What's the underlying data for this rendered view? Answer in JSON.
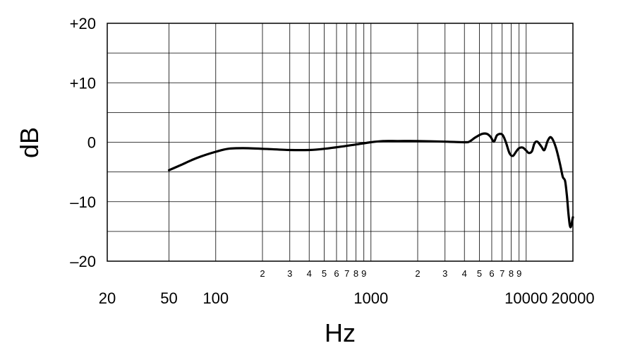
{
  "chart_data": {
    "type": "line",
    "title": "",
    "xlabel": "Hz",
    "ylabel": "dB",
    "xscale": "log",
    "xlim": [
      20,
      20000
    ],
    "ylim": [
      -20,
      20
    ],
    "grid": true,
    "y_ticks": [
      {
        "value": 20,
        "label": "+20"
      },
      {
        "value": 10,
        "label": "+10"
      },
      {
        "value": 0,
        "label": "0"
      },
      {
        "value": -10,
        "label": "–10"
      },
      {
        "value": -20,
        "label": "–20"
      }
    ],
    "x_major_ticks": [
      {
        "value": 20,
        "label": "20"
      },
      {
        "value": 50,
        "label": "50"
      },
      {
        "value": 100,
        "label": "100"
      },
      {
        "value": 1000,
        "label": "1000"
      },
      {
        "value": 10000,
        "label": "10000"
      },
      {
        "value": 20000,
        "label": "20000"
      }
    ],
    "x_minor_ticks": [
      {
        "value": 200,
        "label": "2"
      },
      {
        "value": 300,
        "label": "3"
      },
      {
        "value": 400,
        "label": "4"
      },
      {
        "value": 500,
        "label": "5"
      },
      {
        "value": 600,
        "label": "6"
      },
      {
        "value": 700,
        "label": "7"
      },
      {
        "value": 800,
        "label": "8"
      },
      {
        "value": 900,
        "label": "9"
      },
      {
        "value": 2000,
        "label": "2"
      },
      {
        "value": 3000,
        "label": "3"
      },
      {
        "value": 4000,
        "label": "4"
      },
      {
        "value": 5000,
        "label": "5"
      },
      {
        "value": 6000,
        "label": "6"
      },
      {
        "value": 7000,
        "label": "7"
      },
      {
        "value": 8000,
        "label": "8"
      },
      {
        "value": 9000,
        "label": "9"
      }
    ],
    "x_gridlines": [
      50,
      100,
      200,
      300,
      400,
      500,
      600,
      700,
      800,
      900,
      1000,
      2000,
      3000,
      4000,
      5000,
      6000,
      7000,
      8000,
      9000,
      10000
    ],
    "y_gridlines": [
      -15,
      -10,
      -5,
      0,
      5,
      10,
      15
    ],
    "series": [
      {
        "x": [
          50,
          60,
          70,
          80,
          100,
          120,
          150,
          200,
          300,
          400,
          500,
          700,
          1000,
          1200,
          1500,
          2000,
          3000,
          4000,
          4300,
          4700,
          5200,
          5600,
          5900,
          6200,
          6500,
          7000,
          7400,
          7800,
          8200,
          8600,
          9000,
          9500,
          10000,
          10400,
          10900,
          11300,
          11800,
          12500,
          13100,
          13800,
          14500,
          15500,
          16500,
          17200,
          17800,
          18300,
          18800,
          19300,
          20000
        ],
        "y": [
          -4.7,
          -3.8,
          -3.0,
          -2.4,
          -1.6,
          -1.1,
          -1.0,
          -1.1,
          -1.3,
          -1.3,
          -1.1,
          -0.6,
          0.0,
          0.2,
          0.2,
          0.2,
          0.1,
          0.0,
          0.1,
          0.8,
          1.4,
          1.4,
          0.9,
          0.1,
          1.2,
          1.3,
          0.0,
          -1.8,
          -2.3,
          -1.6,
          -1.0,
          -0.9,
          -1.4,
          -1.8,
          -1.5,
          -0.2,
          0.1,
          -0.7,
          -1.3,
          0.3,
          0.8,
          -0.8,
          -3.6,
          -5.8,
          -6.5,
          -9.0,
          -12.5,
          -14.3,
          -12.6
        ]
      }
    ]
  }
}
